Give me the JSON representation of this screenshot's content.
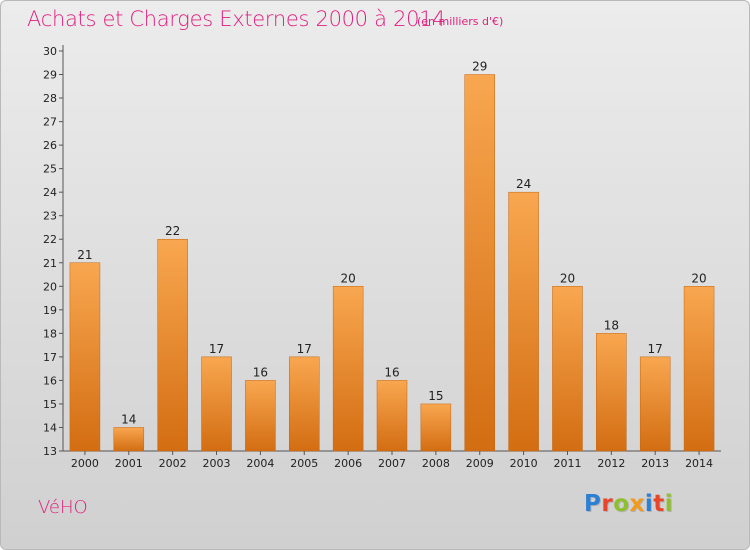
{
  "header": {
    "title": "Achats et Charges Externes 2000 à 2014",
    "subtitle": "(en milliers d'€)"
  },
  "footer": {
    "commune": "VéHO",
    "logo_letters": [
      "P",
      "r",
      "o",
      "x",
      "i",
      "t",
      "i"
    ],
    "logo_colors": [
      "#2b7fd4",
      "#e8452a",
      "#8dbf2e",
      "#f29a1c",
      "#2b7fd4",
      "#e8452a",
      "#8dbf2e"
    ]
  },
  "colors": {
    "bar_top": "#f8a750",
    "bar_bottom": "#d36d12",
    "bar_edge": "#c46510",
    "accent": "#e0207f"
  },
  "chart_data": {
    "type": "bar",
    "title": "Achats et Charges Externes 2000 à 2014",
    "subtitle": "(en milliers d'€)",
    "categories": [
      "2000",
      "2001",
      "2002",
      "2003",
      "2004",
      "2005",
      "2006",
      "2007",
      "2008",
      "2009",
      "2010",
      "2011",
      "2012",
      "2013",
      "2014"
    ],
    "values": [
      21,
      14,
      22,
      17,
      16,
      17,
      20,
      16,
      15,
      29,
      24,
      20,
      18,
      17,
      20
    ],
    "ylim": [
      13,
      30
    ],
    "yticks": [
      13,
      14,
      15,
      16,
      17,
      18,
      19,
      20,
      21,
      22,
      23,
      24,
      25,
      26,
      27,
      28,
      29,
      30
    ],
    "grid": false,
    "data_labels": true
  }
}
